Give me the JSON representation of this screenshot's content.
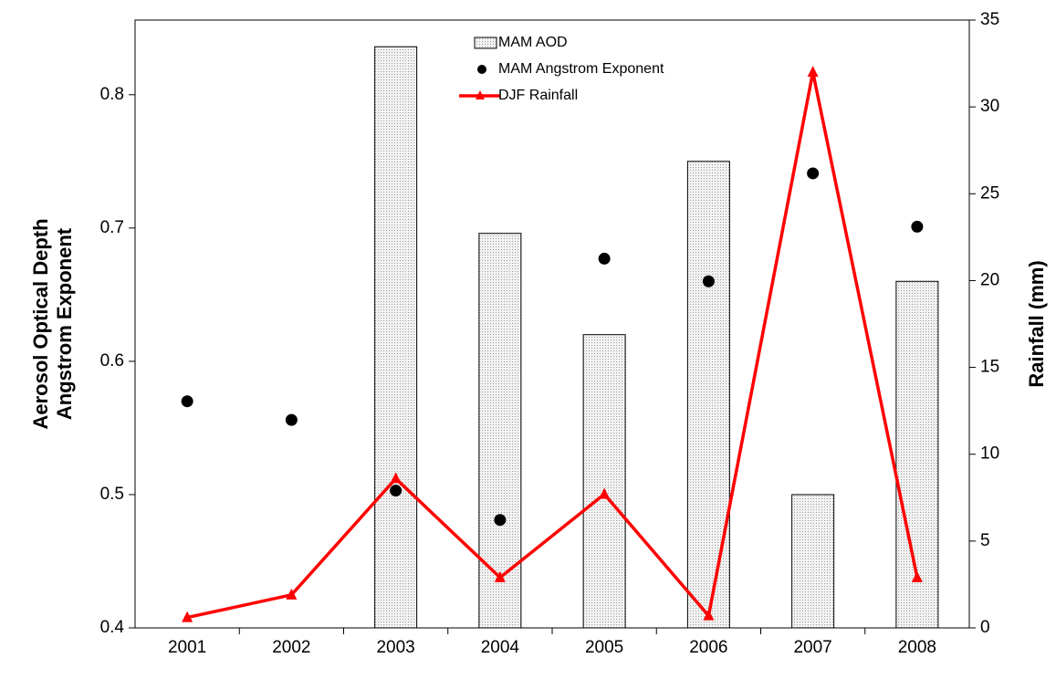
{
  "chart_data": {
    "type": "bar-line",
    "categories": [
      "2001",
      "2002",
      "2003",
      "2004",
      "2005",
      "2006",
      "2007",
      "2008"
    ],
    "y_label": [
      "Aerosol Optical Depth",
      "Angstrom Exponent"
    ],
    "y2_label": "Rainfall (mm)",
    "ylim": [
      0.4,
      0.856
    ],
    "yticks": [
      {
        "value": 0.4,
        "label": "0.4"
      },
      {
        "value": 0.5,
        "label": "0.5"
      },
      {
        "value": 0.6,
        "label": "0.6"
      },
      {
        "value": 0.7,
        "label": "0.7"
      },
      {
        "value": 0.8,
        "label": "0.8"
      }
    ],
    "y2lim": [
      0,
      35
    ],
    "y2ticks": [
      0,
      5,
      10,
      15,
      20,
      25,
      30,
      35
    ],
    "legend": "top-center",
    "series": [
      {
        "name": "MAM AOD",
        "kind": "bar",
        "color": "#e6e6e6",
        "values": [
          null,
          null,
          0.836,
          0.696,
          0.62,
          0.75,
          0.5,
          0.66
        ]
      },
      {
        "name": "MAM Angstrom Exponent",
        "kind": "scatter",
        "color": "#000000",
        "values": [
          0.57,
          0.556,
          0.503,
          0.481,
          0.677,
          0.66,
          0.741,
          0.701
        ]
      },
      {
        "name": "DJF Rainfall",
        "kind": "line",
        "axis": "y2",
        "color": "#ff0000",
        "values": [
          0.6,
          1.9,
          8.6,
          2.9,
          7.7,
          0.7,
          32,
          2.9
        ]
      }
    ]
  }
}
